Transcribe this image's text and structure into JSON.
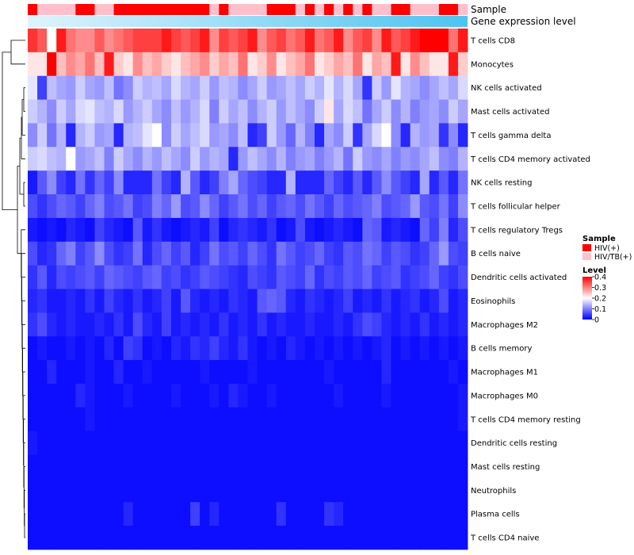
{
  "chart_data": {
    "type": "heatmap",
    "title": "",
    "row_labels": [
      "T cells CD8",
      "Monocytes",
      "NK cells activated",
      "Mast cells activated",
      "T cells gamma delta",
      "T cells CD4 memory activated",
      "NK cells resting",
      "T cells follicular helper",
      "T cells regulatory  Tregs",
      "B cells naive",
      "Dendritic cells activated",
      "Eosinophils",
      "Macrophages M2",
      "B cells memory",
      "Macrophages M1",
      "Macrophages M0",
      "T cells CD4 memory resting",
      "Dendritic cells resting",
      "Mast cells resting",
      "Neutrophils",
      "Plasma cells",
      "T cells CD4 naive"
    ],
    "n_samples": 46,
    "column_annotations": {
      "sample_label": "Sample",
      "gene_label": "Gene expression level",
      "sample_groups": [
        "HIV(+)",
        "HIV/TB(+)",
        "HIV/TB(+)",
        "HIV/TB(+)",
        "HIV/TB(+)",
        "HIV(+)",
        "HIV(+)",
        "HIV/TB(+)",
        "HIV/TB(+)",
        "HIV(+)",
        "HIV(+)",
        "HIV(+)",
        "HIV(+)",
        "HIV(+)",
        "HIV(+)",
        "HIV(+)",
        "HIV(+)",
        "HIV(+)",
        "HIV(+)",
        "HIV/TB(+)",
        "HIV(+)",
        "HIV/TB(+)",
        "HIV/TB(+)",
        "HIV/TB(+)",
        "HIV/TB(+)",
        "HIV(+)",
        "HIV(+)",
        "HIV(+)",
        "HIV/TB(+)",
        "HIV(+)",
        "HIV/TB(+)",
        "HIV(+)",
        "HIV/TB(+)",
        "HIV(+)",
        "HIV/TB(+)",
        "HIV(+)",
        "HIV/TB(+)",
        "HIV/TB(+)",
        "HIV(+)",
        "HIV(+)",
        "HIV/TB(+)",
        "HIV/TB(+)",
        "HIV/TB(+)",
        "HIV(+)",
        "HIV(+)",
        "HIV/TB(+)"
      ],
      "gene_level_range": [
        0,
        1
      ]
    },
    "values": [
      [
        0.36,
        0.33,
        0.2,
        0.38,
        0.31,
        0.29,
        0.29,
        0.33,
        0.29,
        0.31,
        0.33,
        0.35,
        0.35,
        0.35,
        0.38,
        0.35,
        0.33,
        0.35,
        0.38,
        0.29,
        0.35,
        0.33,
        0.35,
        0.38,
        0.29,
        0.33,
        0.35,
        0.31,
        0.33,
        0.38,
        0.31,
        0.33,
        0.38,
        0.29,
        0.33,
        0.35,
        0.29,
        0.38,
        0.33,
        0.35,
        0.38,
        0.4,
        0.4,
        0.4,
        0.31,
        0.38
      ],
      [
        0.22,
        0.22,
        0.4,
        0.25,
        0.29,
        0.27,
        0.31,
        0.25,
        0.38,
        0.24,
        0.22,
        0.29,
        0.25,
        0.27,
        0.24,
        0.22,
        0.25,
        0.27,
        0.29,
        0.24,
        0.27,
        0.25,
        0.31,
        0.22,
        0.24,
        0.29,
        0.22,
        0.25,
        0.27,
        0.31,
        0.22,
        0.24,
        0.27,
        0.25,
        0.31,
        0.22,
        0.27,
        0.25,
        0.38,
        0.22,
        0.29,
        0.25,
        0.22,
        0.22,
        0.38,
        0.24
      ],
      [
        0.18,
        0.05,
        0.15,
        0.13,
        0.12,
        0.16,
        0.13,
        0.12,
        0.15,
        0.09,
        0.11,
        0.16,
        0.14,
        0.15,
        0.13,
        0.17,
        0.14,
        0.13,
        0.16,
        0.12,
        0.15,
        0.14,
        0.11,
        0.13,
        0.16,
        0.12,
        0.13,
        0.15,
        0.13,
        0.16,
        0.14,
        0.18,
        0.14,
        0.17,
        0.13,
        0.04,
        0.16,
        0.12,
        0.18,
        0.14,
        0.13,
        0.11,
        0.13,
        0.15,
        0.13,
        0.17
      ],
      [
        0.16,
        0.14,
        0.11,
        0.16,
        0.13,
        0.17,
        0.18,
        0.15,
        0.14,
        0.17,
        0.12,
        0.14,
        0.16,
        0.13,
        0.11,
        0.15,
        0.12,
        0.14,
        0.17,
        0.1,
        0.16,
        0.13,
        0.15,
        0.11,
        0.14,
        0.16,
        0.12,
        0.15,
        0.13,
        0.11,
        0.16,
        0.22,
        0.13,
        0.17,
        0.15,
        0.09,
        0.13,
        0.16,
        0.11,
        0.14,
        0.1,
        0.12,
        0.13,
        0.11,
        0.16,
        0.13
      ],
      [
        0.11,
        0.16,
        0.09,
        0.14,
        0.03,
        0.14,
        0.16,
        0.12,
        0.13,
        0.03,
        0.14,
        0.15,
        0.18,
        0.2,
        0.11,
        0.16,
        0.13,
        0.15,
        0.17,
        0.12,
        0.13,
        0.11,
        0.15,
        0.03,
        0.05,
        0.16,
        0.12,
        0.08,
        0.14,
        0.1,
        0.03,
        0.13,
        0.11,
        0.16,
        0.04,
        0.13,
        0.17,
        0.2,
        0.11,
        0.03,
        0.14,
        0.12,
        0.13,
        0.04,
        0.11,
        0.03
      ],
      [
        0.16,
        0.17,
        0.15,
        0.14,
        0.2,
        0.12,
        0.13,
        0.15,
        0.1,
        0.16,
        0.13,
        0.11,
        0.14,
        0.12,
        0.15,
        0.13,
        0.11,
        0.16,
        0.12,
        0.14,
        0.13,
        0.03,
        0.12,
        0.15,
        0.13,
        0.11,
        0.14,
        0.1,
        0.12,
        0.13,
        0.1,
        0.12,
        0.14,
        0.09,
        0.16,
        0.12,
        0.11,
        0.13,
        0.1,
        0.12,
        0.11,
        0.13,
        0.15,
        0.11,
        0.1,
        0.14
      ],
      [
        0.02,
        0.07,
        0.11,
        0.05,
        0.03,
        0.09,
        0.04,
        0.08,
        0.05,
        0.11,
        0.03,
        0.03,
        0.03,
        0.09,
        0.05,
        0.03,
        0.14,
        0.07,
        0.03,
        0.05,
        0.1,
        0.13,
        0.08,
        0.06,
        0.05,
        0.03,
        0.03,
        0.14,
        0.03,
        0.03,
        0.03,
        0.08,
        0.05,
        0.03,
        0.07,
        0.03,
        0.07,
        0.11,
        0.07,
        0.05,
        0.03,
        0.13,
        0.03,
        0.07,
        0.03,
        0.09
      ],
      [
        0.06,
        0.04,
        0.06,
        0.08,
        0.07,
        0.05,
        0.08,
        0.1,
        0.06,
        0.07,
        0.09,
        0.05,
        0.06,
        0.1,
        0.08,
        0.12,
        0.06,
        0.07,
        0.11,
        0.08,
        0.05,
        0.07,
        0.09,
        0.06,
        0.08,
        0.05,
        0.07,
        0.08,
        0.06,
        0.09,
        0.07,
        0.05,
        0.08,
        0.06,
        0.07,
        0.08,
        0.1,
        0.06,
        0.07,
        0.08,
        0.12,
        0.07,
        0.06,
        0.09,
        0.05,
        0.11
      ],
      [
        0.02,
        0.01,
        0.02,
        0.01,
        0.03,
        0.02,
        0.01,
        0.05,
        0.03,
        0.02,
        0.01,
        0.07,
        0.02,
        0.04,
        0.02,
        0.01,
        0.02,
        0.03,
        0.02,
        0.05,
        0.01,
        0.03,
        0.04,
        0.03,
        0.02,
        0.04,
        0.01,
        0.02,
        0.06,
        0.02,
        0.01,
        0.02,
        0.03,
        0.02,
        0.01,
        0.08,
        0.07,
        0.02,
        0.03,
        0.02,
        0.01,
        0.08,
        0.05,
        0.1,
        0.03,
        0.06
      ],
      [
        0.06,
        0.03,
        0.04,
        0.08,
        0.1,
        0.05,
        0.07,
        0.11,
        0.06,
        0.04,
        0.05,
        0.09,
        0.03,
        0.06,
        0.08,
        0.05,
        0.07,
        0.03,
        0.05,
        0.09,
        0.06,
        0.07,
        0.05,
        0.08,
        0.06,
        0.04,
        0.09,
        0.07,
        0.05,
        0.06,
        0.08,
        0.05,
        0.04,
        0.07,
        0.06,
        0.09,
        0.08,
        0.05,
        0.07,
        0.06,
        0.04,
        0.05,
        0.08,
        0.12,
        0.06,
        0.05
      ],
      [
        0.04,
        0.07,
        0.03,
        0.06,
        0.05,
        0.06,
        0.07,
        0.05,
        0.08,
        0.07,
        0.06,
        0.05,
        0.07,
        0.08,
        0.05,
        0.06,
        0.04,
        0.05,
        0.07,
        0.06,
        0.05,
        0.04,
        0.03,
        0.06,
        0.05,
        0.04,
        0.07,
        0.06,
        0.05,
        0.08,
        0.04,
        0.06,
        0.05,
        0.07,
        0.06,
        0.08,
        0.05,
        0.06,
        0.07,
        0.04,
        0.05,
        0.06,
        0.08,
        0.05,
        0.04,
        0.06
      ],
      [
        0.03,
        0.04,
        0.02,
        0.02,
        0.03,
        0.02,
        0.04,
        0.02,
        0.05,
        0.03,
        0.02,
        0.04,
        0.02,
        0.03,
        0.05,
        0.02,
        0.07,
        0.03,
        0.02,
        0.03,
        0.02,
        0.04,
        0.03,
        0.02,
        0.07,
        0.08,
        0.07,
        0.03,
        0.02,
        0.04,
        0.03,
        0.02,
        0.03,
        0.05,
        0.02,
        0.03,
        0.02,
        0.04,
        0.02,
        0.03,
        0.04,
        0.02,
        0.03,
        0.06,
        0.02,
        0.03
      ],
      [
        0.04,
        0.06,
        0.03,
        0.02,
        0.03,
        0.02,
        0.02,
        0.03,
        0.02,
        0.04,
        0.02,
        0.06,
        0.03,
        0.02,
        0.05,
        0.02,
        0.03,
        0.02,
        0.03,
        0.02,
        0.04,
        0.02,
        0.03,
        0.02,
        0.04,
        0.02,
        0.03,
        0.02,
        0.02,
        0.03,
        0.02,
        0.02,
        0.03,
        0.02,
        0.04,
        0.06,
        0.05,
        0.03,
        0.02,
        0.03,
        0.02,
        0.04,
        0.02,
        0.03,
        0.02,
        0.03
      ],
      [
        0.01,
        0.02,
        0.01,
        0.01,
        0.02,
        0.01,
        0.02,
        0.01,
        0.03,
        0.01,
        0.05,
        0.04,
        0.01,
        0.02,
        0.01,
        0.03,
        0.02,
        0.04,
        0.03,
        0.05,
        0.03,
        0.02,
        0.04,
        0.02,
        0.01,
        0.02,
        0.01,
        0.03,
        0.02,
        0.01,
        0.02,
        0.01,
        0.02,
        0.01,
        0.02,
        0.01,
        0.02,
        0.03,
        0.01,
        0.02,
        0.01,
        0.02,
        0.01,
        0.02,
        0.01,
        0.02
      ],
      [
        0.01,
        0.01,
        0.03,
        0.01,
        0.01,
        0.01,
        0.02,
        0.01,
        0.01,
        0.03,
        0.01,
        0.01,
        0.02,
        0.01,
        0.01,
        0.01,
        0.01,
        0.01,
        0.02,
        0.01,
        0.01,
        0.01,
        0.01,
        0.02,
        0.01,
        0.01,
        0.01,
        0.01,
        0.01,
        0.01,
        0.01,
        0.02,
        0.01,
        0.01,
        0.01,
        0.01,
        0.01,
        0.03,
        0.01,
        0.01,
        0.01,
        0.01,
        0.01,
        0.01,
        0.02,
        0.01
      ],
      [
        0.01,
        0.01,
        0.01,
        0.01,
        0.01,
        0.03,
        0.02,
        0.01,
        0.01,
        0.01,
        0.02,
        0.01,
        0.01,
        0.01,
        0.01,
        0.02,
        0.01,
        0.01,
        0.01,
        0.02,
        0.01,
        0.03,
        0.02,
        0.01,
        0.01,
        0.02,
        0.01,
        0.01,
        0.01,
        0.01,
        0.01,
        0.01,
        0.02,
        0.01,
        0.01,
        0.01,
        0.01,
        0.02,
        0.01,
        0.01,
        0.01,
        0.01,
        0.01,
        0.01,
        0.01,
        0.02
      ],
      [
        0.01,
        0.01,
        0.01,
        0.01,
        0.01,
        0.01,
        0.02,
        0.01,
        0.01,
        0.01,
        0.01,
        0.01,
        0.01,
        0.01,
        0.01,
        0.01,
        0.01,
        0.01,
        0.01,
        0.01,
        0.01,
        0.01,
        0.01,
        0.01,
        0.01,
        0.01,
        0.01,
        0.01,
        0.01,
        0.01,
        0.01,
        0.01,
        0.01,
        0.01,
        0.01,
        0.01,
        0.01,
        0.01,
        0.01,
        0.01,
        0.01,
        0.01,
        0.01,
        0.01,
        0.01,
        0.02
      ],
      [
        0.02,
        0.01,
        0.01,
        0.01,
        0.01,
        0.01,
        0.01,
        0.01,
        0.01,
        0.01,
        0.01,
        0.01,
        0.01,
        0.01,
        0.01,
        0.01,
        0.01,
        0.01,
        0.01,
        0.01,
        0.01,
        0.01,
        0.01,
        0.01,
        0.01,
        0.01,
        0.01,
        0.01,
        0.01,
        0.01,
        0.01,
        0.01,
        0.01,
        0.01,
        0.01,
        0.01,
        0.01,
        0.01,
        0.01,
        0.01,
        0.01,
        0.01,
        0.01,
        0.01,
        0.01,
        0.01
      ],
      [
        0.01,
        0.01,
        0.01,
        0.01,
        0.01,
        0.01,
        0.01,
        0.01,
        0.01,
        0.01,
        0.01,
        0.01,
        0.01,
        0.01,
        0.01,
        0.01,
        0.01,
        0.01,
        0.01,
        0.01,
        0.01,
        0.01,
        0.01,
        0.01,
        0.01,
        0.01,
        0.01,
        0.01,
        0.01,
        0.01,
        0.01,
        0.01,
        0.01,
        0.01,
        0.01,
        0.01,
        0.01,
        0.01,
        0.01,
        0.01,
        0.01,
        0.01,
        0.01,
        0.01,
        0.01,
        0.01
      ],
      [
        0.01,
        0.01,
        0.01,
        0.01,
        0.01,
        0.01,
        0.01,
        0.01,
        0.01,
        0.01,
        0.01,
        0.01,
        0.01,
        0.01,
        0.01,
        0.01,
        0.01,
        0.01,
        0.01,
        0.01,
        0.01,
        0.01,
        0.01,
        0.01,
        0.01,
        0.01,
        0.01,
        0.01,
        0.01,
        0.01,
        0.01,
        0.01,
        0.01,
        0.01,
        0.01,
        0.01,
        0.01,
        0.01,
        0.01,
        0.01,
        0.01,
        0.01,
        0.01,
        0.01,
        0.01,
        0.01
      ],
      [
        0.01,
        0.01,
        0.01,
        0.01,
        0.01,
        0.01,
        0.01,
        0.01,
        0.01,
        0.01,
        0.03,
        0.01,
        0.01,
        0.01,
        0.01,
        0.01,
        0.01,
        0.05,
        0.01,
        0.03,
        0.01,
        0.01,
        0.01,
        0.01,
        0.01,
        0.01,
        0.04,
        0.01,
        0.01,
        0.01,
        0.01,
        0.04,
        0.03,
        0.01,
        0.01,
        0.01,
        0.01,
        0.01,
        0.01,
        0.01,
        0.01,
        0.01,
        0.01,
        0.01,
        0.01,
        0.01
      ],
      [
        0.01,
        0.01,
        0.01,
        0.01,
        0.01,
        0.01,
        0.01,
        0.01,
        0.01,
        0.01,
        0.01,
        0.01,
        0.01,
        0.01,
        0.01,
        0.01,
        0.01,
        0.01,
        0.01,
        0.01,
        0.01,
        0.01,
        0.01,
        0.01,
        0.01,
        0.01,
        0.01,
        0.01,
        0.01,
        0.01,
        0.01,
        0.01,
        0.01,
        0.01,
        0.01,
        0.01,
        0.01,
        0.01,
        0.01,
        0.01,
        0.01,
        0.01,
        0.01,
        0.01,
        0.01,
        0.01
      ]
    ],
    "color_scale": {
      "domain": [
        0,
        0.2,
        0.4
      ],
      "colors": [
        "#0000ff",
        "#ffffff",
        "#ff0000"
      ]
    },
    "legend": {
      "sample_title": "Sample",
      "sample_entries": [
        {
          "label": "HIV(+)",
          "color": "#ff0000"
        },
        {
          "label": "HIV/TB(+)",
          "color": "#ffc0cb"
        }
      ],
      "level_title": "Level",
      "level_ticks": [
        "0.4",
        "0.3",
        "0.2",
        "0.1",
        "0"
      ],
      "level_tick_values": [
        0.4,
        0.3,
        0.2,
        0.1,
        0
      ]
    },
    "gene_gradient_colors": [
      "#dff4fd",
      "#4fc3f0"
    ]
  }
}
